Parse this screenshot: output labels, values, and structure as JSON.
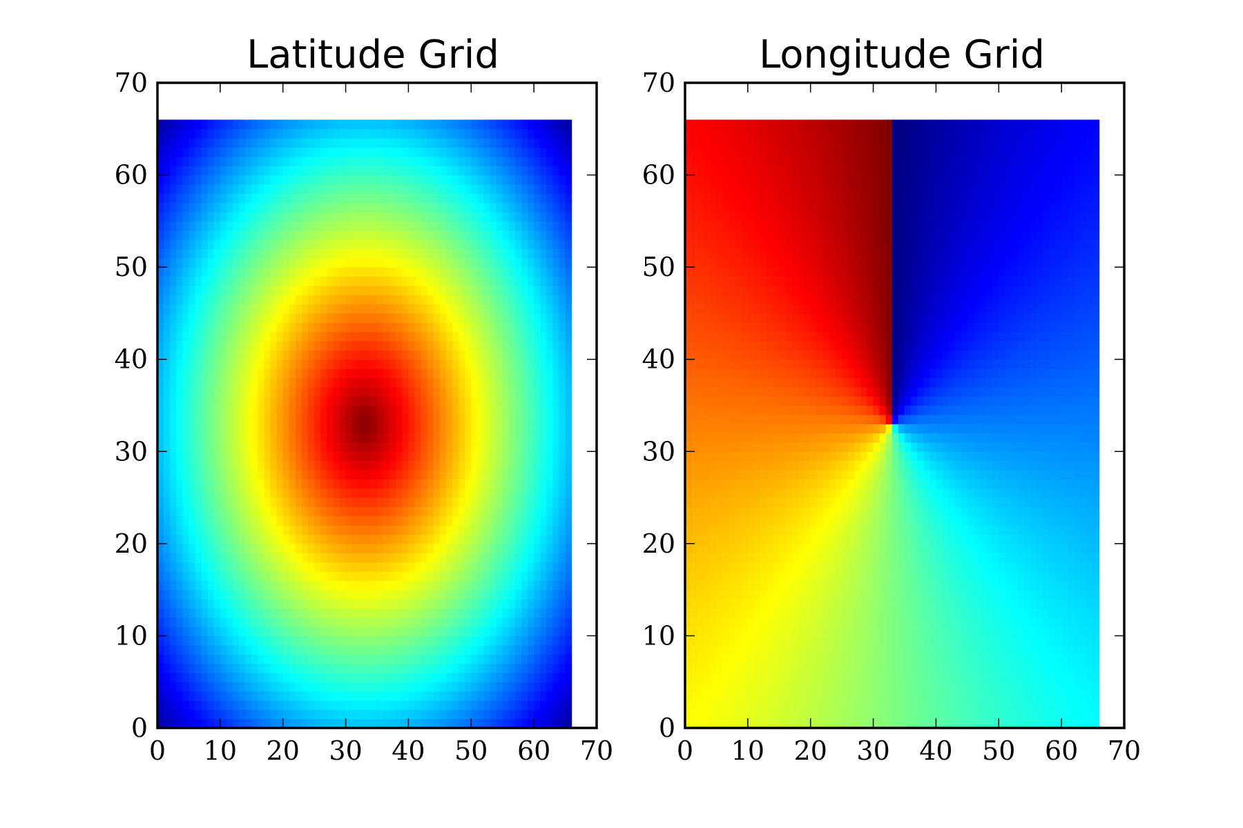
{
  "chart_data": [
    {
      "type": "heatmap",
      "title": "Latitude Grid",
      "xlabel": "",
      "ylabel": "",
      "xlim": [
        0,
        70
      ],
      "ylim": [
        0,
        70
      ],
      "xticks": [
        0,
        10,
        20,
        30,
        40,
        50,
        60,
        70
      ],
      "yticks": [
        0,
        10,
        20,
        30,
        40,
        50,
        60,
        70
      ],
      "grid_size": [
        66,
        66
      ],
      "colormap": "jet",
      "field": "radial",
      "center": [
        33,
        33
      ],
      "grid": false
    },
    {
      "type": "heatmap",
      "title": "Longitude Grid",
      "xlabel": "",
      "ylabel": "",
      "xlim": [
        0,
        70
      ],
      "ylim": [
        0,
        70
      ],
      "xticks": [
        0,
        10,
        20,
        30,
        40,
        50,
        60,
        70
      ],
      "yticks": [
        0,
        10,
        20,
        30,
        40,
        50,
        60,
        70
      ],
      "grid_size": [
        66,
        66
      ],
      "colormap": "jet",
      "field": "angular",
      "center": [
        33,
        33
      ],
      "grid": false
    }
  ]
}
